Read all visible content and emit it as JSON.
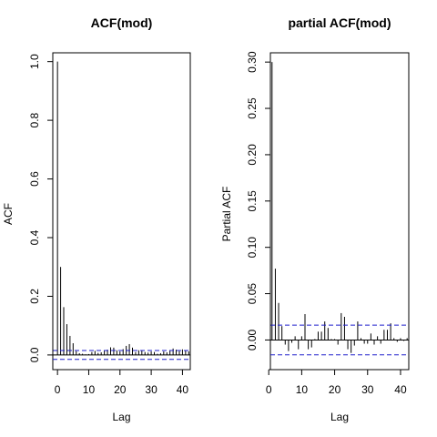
{
  "chart_data": [
    {
      "type": "bar",
      "style": "acf-spikes",
      "title": "ACF(mod)",
      "xlabel": "Lag",
      "ylabel": "ACF",
      "xlim": [
        -1.5,
        42.5
      ],
      "ylim": [
        -0.05,
        1.03
      ],
      "x_ticks": [
        0,
        10,
        20,
        30,
        40
      ],
      "x_tick_labels": [
        "0",
        "10",
        "20",
        "30",
        "40"
      ],
      "y_ticks": [
        0.0,
        0.2,
        0.4,
        0.6,
        0.8,
        1.0
      ],
      "y_tick_labels": [
        "0.0",
        "0.2",
        "0.4",
        "0.6",
        "0.8",
        "1.0"
      ],
      "zero_line": true,
      "confidence_bound": 0.015,
      "lags": [
        0,
        1,
        2,
        3,
        4,
        5,
        6,
        7,
        8,
        9,
        10,
        11,
        12,
        13,
        14,
        15,
        16,
        17,
        18,
        19,
        20,
        21,
        22,
        23,
        24,
        25,
        26,
        27,
        28,
        29,
        30,
        31,
        32,
        33,
        34,
        35,
        36,
        37,
        38,
        39,
        40,
        41,
        42
      ],
      "values": [
        1.0,
        0.3,
        0.163,
        0.105,
        0.065,
        0.04,
        0.013,
        0.006,
        0.004,
        0.002,
        0.003,
        0.01,
        0.014,
        0.007,
        0.009,
        0.015,
        0.018,
        0.026,
        0.025,
        0.016,
        0.012,
        0.02,
        0.031,
        0.037,
        0.025,
        0.01,
        0.016,
        0.015,
        0.01,
        0.008,
        0.012,
        0.01,
        0.004,
        0.006,
        0.012,
        0.009,
        0.016,
        0.022,
        0.018,
        0.013,
        0.019,
        0.016,
        0.012
      ]
    },
    {
      "type": "bar",
      "style": "acf-spikes",
      "title": "partial ACF(mod)",
      "xlabel": "Lag",
      "ylabel": "Partial ACF",
      "xlim": [
        0.5,
        42.5
      ],
      "ylim": [
        -0.032,
        0.31
      ],
      "x_ticks": [
        0,
        10,
        20,
        30,
        40
      ],
      "x_tick_labels": [
        "0",
        "10",
        "20",
        "30",
        "40"
      ],
      "y_ticks": [
        0.0,
        0.05,
        0.1,
        0.15,
        0.2,
        0.25,
        0.3
      ],
      "y_tick_labels": [
        "0.00",
        "0.05",
        "0.10",
        "0.15",
        "0.20",
        "0.25",
        "0.30"
      ],
      "zero_line": true,
      "confidence_bound": 0.016,
      "lags": [
        1,
        2,
        3,
        4,
        5,
        6,
        7,
        8,
        9,
        10,
        11,
        12,
        13,
        14,
        15,
        16,
        17,
        18,
        19,
        20,
        21,
        22,
        23,
        24,
        25,
        26,
        27,
        28,
        29,
        30,
        31,
        32,
        33,
        34,
        35,
        36,
        37,
        38,
        39,
        40,
        41,
        42
      ],
      "values": [
        0.3,
        0.077,
        0.04,
        0.015,
        -0.005,
        -0.012,
        -0.003,
        0.004,
        -0.01,
        0.004,
        0.028,
        -0.01,
        -0.008,
        0.001,
        0.009,
        0.009,
        0.02,
        0.013,
        0.001,
        0.001,
        -0.005,
        0.029,
        0.025,
        -0.01,
        -0.014,
        -0.006,
        0.02,
        0.002,
        -0.004,
        -0.004,
        0.007,
        -0.005,
        0.004,
        -0.004,
        0.011,
        0.011,
        0.018,
        0.002,
        -0.002,
        0.002,
        -0.001,
        0.002
      ]
    }
  ]
}
